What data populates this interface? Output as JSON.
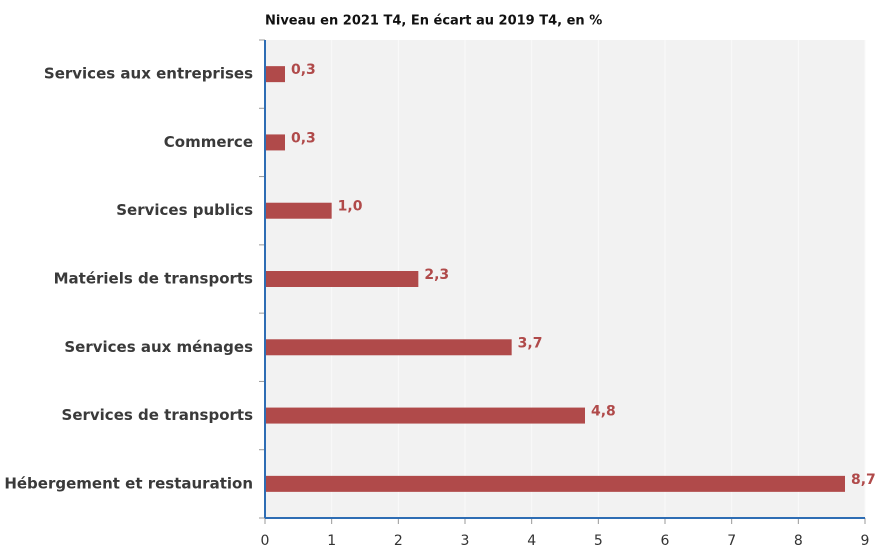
{
  "chart_data": {
    "type": "hbar",
    "title": "Niveau en 2021 T4, En écart au 2019 T4, en %",
    "categories": [
      "Services aux entreprises",
      "Commerce",
      "Services publics",
      "Matériels de transports",
      "Services aux ménages",
      "Services de transports",
      "Hébergement et restauration"
    ],
    "values": [
      0.3,
      0.3,
      1.0,
      2.3,
      3.7,
      4.8,
      8.7
    ],
    "value_labels": [
      "0,3",
      "0,3",
      "1,0",
      "2,3",
      "3,7",
      "4,8",
      "8,7"
    ],
    "color": "#b04a4a",
    "xlim": [
      0,
      9
    ],
    "xticks": [
      0,
      1,
      2,
      3,
      4,
      5,
      6,
      7,
      8,
      9
    ],
    "grid": true
  }
}
